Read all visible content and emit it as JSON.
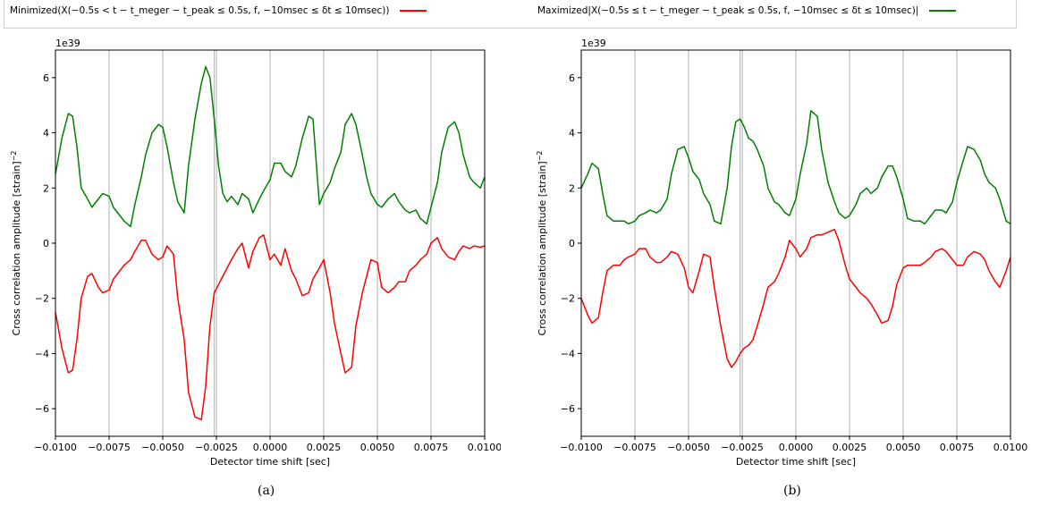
{
  "legend": {
    "min_label": "Minimized(X(−0.5s < t − t_meger − t_peak ≤ 0.5s, f, −10msec ≤ δt ≤ 10msec))",
    "max_label": "Maximized|X(−0.5s ≤ t − t_meger − t_peak ≤ 0.5s, f, −10msec ≤ δt ≤ 10msec)|",
    "min_color": "#ff0000",
    "max_color": "#007f00"
  },
  "captions": [
    "(a)",
    "(b)"
  ],
  "chart_data": [
    {
      "type": "line",
      "xlabel": "Detector time shift [sec]",
      "ylabel": "Cross correlation amplitude [strain]^-2",
      "offset_label": "1e39",
      "xlim": [
        -0.01,
        0.01
      ],
      "ylim": [
        -7,
        7
      ],
      "xticks": [
        -0.01,
        -0.0075,
        -0.005,
        -0.0025,
        0,
        0.0025,
        0.005,
        0.0075,
        0.01
      ],
      "xtick_labels": [
        "−0.0100",
        "−0.0075",
        "−0.0050",
        "−0.0025",
        "0.0000",
        "0.0025",
        "0.0050",
        "0.0075",
        "0.0100"
      ],
      "yticks": [
        -6,
        -4,
        -2,
        0,
        2,
        4,
        6
      ],
      "ytick_labels": [
        "−6",
        "−4",
        "−2",
        "0",
        "2",
        "4",
        "6"
      ],
      "grid": "vertical",
      "vlines": [
        -0.0075,
        -0.005,
        -0.0026,
        -0.0025,
        0.0,
        0.0025,
        0.005,
        0.0075
      ],
      "series": [
        {
          "name": "Maximized",
          "color": "#007f00",
          "x": [
            -0.01,
            -0.0097,
            -0.0094,
            -0.0092,
            -0.009,
            -0.0088,
            -0.0085,
            -0.0083,
            -0.008,
            -0.0078,
            -0.0075,
            -0.0073,
            -0.007,
            -0.0068,
            -0.0065,
            -0.0063,
            -0.006,
            -0.0058,
            -0.0055,
            -0.0052,
            -0.005,
            -0.0048,
            -0.0045,
            -0.0043,
            -0.004,
            -0.0038,
            -0.0035,
            -0.0032,
            -0.003,
            -0.0028,
            -0.0026,
            -0.0024,
            -0.0022,
            -0.002,
            -0.0018,
            -0.0015,
            -0.0013,
            -0.001,
            -0.0008,
            -0.0005,
            -0.0003,
            0.0,
            0.0002,
            0.0005,
            0.0007,
            0.001,
            0.0012,
            0.0015,
            0.0018,
            0.002,
            0.0023,
            0.0025,
            0.0028,
            0.003,
            0.0033,
            0.0035,
            0.0038,
            0.004,
            0.0043,
            0.0045,
            0.0047,
            0.005,
            0.0052,
            0.0055,
            0.0058,
            0.006,
            0.0063,
            0.0065,
            0.0068,
            0.007,
            0.0073,
            0.0075,
            0.0078,
            0.008,
            0.0083,
            0.0086,
            0.0088,
            0.009,
            0.0093,
            0.0095,
            0.0098,
            0.01
          ],
          "y": [
            2.5,
            3.8,
            4.7,
            4.6,
            3.5,
            2.0,
            1.6,
            1.3,
            1.6,
            1.8,
            1.7,
            1.3,
            1.0,
            0.8,
            0.6,
            1.4,
            2.4,
            3.2,
            4.0,
            4.3,
            4.2,
            3.5,
            2.2,
            1.5,
            1.1,
            2.8,
            4.5,
            5.8,
            6.4,
            6.0,
            4.5,
            2.8,
            1.8,
            1.5,
            1.7,
            1.4,
            1.8,
            1.6,
            1.1,
            1.6,
            1.9,
            2.3,
            2.9,
            2.9,
            2.6,
            2.4,
            2.8,
            3.8,
            4.6,
            4.5,
            1.4,
            1.8,
            2.2,
            2.7,
            3.3,
            4.3,
            4.7,
            4.3,
            3.2,
            2.4,
            1.8,
            1.4,
            1.3,
            1.6,
            1.8,
            1.5,
            1.2,
            1.1,
            1.2,
            0.9,
            0.7,
            1.3,
            2.2,
            3.3,
            4.2,
            4.4,
            4.0,
            3.2,
            2.4,
            2.2,
            2.0,
            2.4
          ]
        },
        {
          "name": "Minimized",
          "color": "#ff0000",
          "x": [
            -0.01,
            -0.0097,
            -0.0094,
            -0.0092,
            -0.009,
            -0.0088,
            -0.0085,
            -0.0083,
            -0.008,
            -0.0078,
            -0.0075,
            -0.0073,
            -0.007,
            -0.0068,
            -0.0065,
            -0.0063,
            -0.006,
            -0.0058,
            -0.0055,
            -0.0052,
            -0.005,
            -0.0048,
            -0.0045,
            -0.0043,
            -0.004,
            -0.0038,
            -0.0035,
            -0.0032,
            -0.003,
            -0.0028,
            -0.0026,
            -0.0024,
            -0.0022,
            -0.002,
            -0.0018,
            -0.0015,
            -0.0013,
            -0.001,
            -0.0008,
            -0.0005,
            -0.0003,
            0.0,
            0.0002,
            0.0005,
            0.0007,
            0.001,
            0.0012,
            0.0015,
            0.0018,
            0.002,
            0.0023,
            0.0025,
            0.0028,
            0.003,
            0.0033,
            0.0035,
            0.0038,
            0.004,
            0.0043,
            0.0045,
            0.0047,
            0.005,
            0.0052,
            0.0055,
            0.0058,
            0.006,
            0.0063,
            0.0065,
            0.0068,
            0.007,
            0.0073,
            0.0075,
            0.0078,
            0.008,
            0.0083,
            0.0086,
            0.0088,
            0.009,
            0.0093,
            0.0095,
            0.0098,
            0.01
          ],
          "y": [
            -2.5,
            -3.8,
            -4.7,
            -4.6,
            -3.5,
            -2.0,
            -1.2,
            -1.1,
            -1.6,
            -1.8,
            -1.7,
            -1.3,
            -1.0,
            -0.8,
            -0.6,
            -0.3,
            0.1,
            0.1,
            -0.4,
            -0.6,
            -0.5,
            -0.1,
            -0.4,
            -2.0,
            -3.5,
            -5.4,
            -6.3,
            -6.4,
            -5.2,
            -3.0,
            -1.8,
            -1.5,
            -1.2,
            -0.9,
            -0.6,
            -0.2,
            0.0,
            -0.9,
            -0.3,
            0.2,
            0.3,
            -0.6,
            -0.4,
            -0.8,
            -0.2,
            -1.0,
            -1.3,
            -1.9,
            -1.8,
            -1.3,
            -0.9,
            -0.6,
            -1.8,
            -2.9,
            -4.0,
            -4.7,
            -4.5,
            -3.0,
            -1.8,
            -1.2,
            -0.6,
            -0.7,
            -1.6,
            -1.8,
            -1.6,
            -1.4,
            -1.4,
            -1.0,
            -0.8,
            -0.6,
            -0.4,
            0.0,
            0.2,
            -0.2,
            -0.5,
            -0.6,
            -0.3,
            -0.1,
            -0.2,
            -0.1,
            -0.15,
            -0.1
          ]
        }
      ]
    },
    {
      "type": "line",
      "xlabel": "Detector time shift [sec]",
      "ylabel": "Cross correlation amplitude [strain]^-2",
      "offset_label": "1e39",
      "xlim": [
        -0.01,
        0.01
      ],
      "ylim": [
        -7,
        7
      ],
      "xticks": [
        -0.01,
        -0.0075,
        -0.005,
        -0.0025,
        0,
        0.0025,
        0.005,
        0.0075,
        0.01
      ],
      "xtick_labels": [
        "−0.0100",
        "−0.0075",
        "−0.0050",
        "−0.0025",
        "0.0000",
        "0.0025",
        "0.0050",
        "0.0075",
        "0.0100"
      ],
      "yticks": [
        -6,
        -4,
        -2,
        0,
        2,
        4,
        6
      ],
      "ytick_labels": [
        "−6",
        "−4",
        "−2",
        "0",
        "2",
        "4",
        "6"
      ],
      "grid": "vertical",
      "vlines": [
        -0.0075,
        -0.005,
        -0.0026,
        -0.0025,
        0.0,
        0.0025,
        0.005,
        0.0075
      ],
      "series": [
        {
          "name": "Maximized",
          "color": "#007f00",
          "x": [
            -0.01,
            -0.0097,
            -0.0095,
            -0.0092,
            -0.009,
            -0.0088,
            -0.0085,
            -0.0082,
            -0.008,
            -0.0078,
            -0.0075,
            -0.0073,
            -0.007,
            -0.0068,
            -0.0065,
            -0.0063,
            -0.006,
            -0.0058,
            -0.0055,
            -0.0052,
            -0.005,
            -0.0048,
            -0.0045,
            -0.0043,
            -0.004,
            -0.0038,
            -0.0035,
            -0.0032,
            -0.003,
            -0.0028,
            -0.0026,
            -0.0024,
            -0.0022,
            -0.002,
            -0.0018,
            -0.0015,
            -0.0013,
            -0.001,
            -0.0008,
            -0.0005,
            -0.0003,
            0.0,
            0.0002,
            0.0005,
            0.0007,
            0.001,
            0.0012,
            0.0015,
            0.0018,
            0.002,
            0.0023,
            0.0025,
            0.0028,
            0.003,
            0.0033,
            0.0035,
            0.0038,
            0.004,
            0.0043,
            0.0045,
            0.0047,
            0.005,
            0.0052,
            0.0055,
            0.0058,
            0.006,
            0.0063,
            0.0065,
            0.0068,
            0.007,
            0.0073,
            0.0075,
            0.0078,
            0.008,
            0.0083,
            0.0086,
            0.0088,
            0.009,
            0.0093,
            0.0095,
            0.0098,
            0.01
          ],
          "y": [
            2.0,
            2.5,
            2.9,
            2.7,
            1.8,
            1.0,
            0.8,
            0.8,
            0.8,
            0.7,
            0.8,
            1.0,
            1.1,
            1.2,
            1.1,
            1.2,
            1.6,
            2.5,
            3.4,
            3.5,
            3.1,
            2.6,
            2.3,
            1.8,
            1.4,
            0.8,
            0.7,
            2.0,
            3.5,
            4.4,
            4.5,
            4.2,
            3.8,
            3.7,
            3.4,
            2.8,
            2.0,
            1.5,
            1.4,
            1.1,
            1.0,
            1.6,
            2.5,
            3.6,
            4.8,
            4.6,
            3.4,
            2.2,
            1.5,
            1.1,
            0.9,
            1.0,
            1.4,
            1.8,
            2.0,
            1.8,
            2.0,
            2.4,
            2.8,
            2.8,
            2.4,
            1.6,
            0.9,
            0.8,
            0.8,
            0.7,
            1.0,
            1.2,
            1.2,
            1.1,
            1.5,
            2.2,
            3.0,
            3.5,
            3.4,
            3.0,
            2.5,
            2.2,
            2.0,
            1.6,
            0.8,
            0.7
          ]
        },
        {
          "name": "Minimized",
          "color": "#ff0000",
          "x": [
            -0.01,
            -0.0097,
            -0.0095,
            -0.0092,
            -0.009,
            -0.0088,
            -0.0085,
            -0.0082,
            -0.008,
            -0.0078,
            -0.0075,
            -0.0073,
            -0.007,
            -0.0068,
            -0.0065,
            -0.0063,
            -0.006,
            -0.0058,
            -0.0055,
            -0.0052,
            -0.005,
            -0.0048,
            -0.0045,
            -0.0043,
            -0.004,
            -0.0038,
            -0.0035,
            -0.0032,
            -0.003,
            -0.0028,
            -0.0026,
            -0.0024,
            -0.0022,
            -0.002,
            -0.0018,
            -0.0015,
            -0.0013,
            -0.001,
            -0.0008,
            -0.0005,
            -0.0003,
            0.0,
            0.0002,
            0.0005,
            0.0007,
            0.001,
            0.0012,
            0.0015,
            0.0018,
            0.002,
            0.0023,
            0.0025,
            0.0028,
            0.003,
            0.0033,
            0.0035,
            0.0038,
            0.004,
            0.0043,
            0.0045,
            0.0047,
            0.005,
            0.0052,
            0.0055,
            0.0058,
            0.006,
            0.0063,
            0.0065,
            0.0068,
            0.007,
            0.0073,
            0.0075,
            0.0078,
            0.008,
            0.0083,
            0.0086,
            0.0088,
            0.009,
            0.0093,
            0.0095,
            0.0098,
            0.01
          ],
          "y": [
            -2.0,
            -2.6,
            -2.9,
            -2.7,
            -1.8,
            -1.0,
            -0.8,
            -0.8,
            -0.6,
            -0.5,
            -0.4,
            -0.2,
            -0.2,
            -0.5,
            -0.7,
            -0.7,
            -0.5,
            -0.3,
            -0.4,
            -0.9,
            -1.6,
            -1.8,
            -1.0,
            -0.4,
            -0.5,
            -1.6,
            -3.0,
            -4.2,
            -4.5,
            -4.3,
            -4.0,
            -3.8,
            -3.7,
            -3.5,
            -3.0,
            -2.2,
            -1.6,
            -1.4,
            -1.1,
            -0.5,
            0.1,
            -0.2,
            -0.5,
            -0.2,
            0.2,
            0.3,
            0.3,
            0.4,
            0.5,
            0.1,
            -0.8,
            -1.3,
            -1.6,
            -1.8,
            -2.0,
            -2.2,
            -2.6,
            -2.9,
            -2.8,
            -2.3,
            -1.5,
            -0.9,
            -0.8,
            -0.8,
            -0.8,
            -0.7,
            -0.5,
            -0.3,
            -0.2,
            -0.3,
            -0.6,
            -0.8,
            -0.8,
            -0.5,
            -0.3,
            -0.4,
            -0.6,
            -1.0,
            -1.4,
            -1.6,
            -1.0,
            -0.5
          ]
        }
      ]
    }
  ]
}
